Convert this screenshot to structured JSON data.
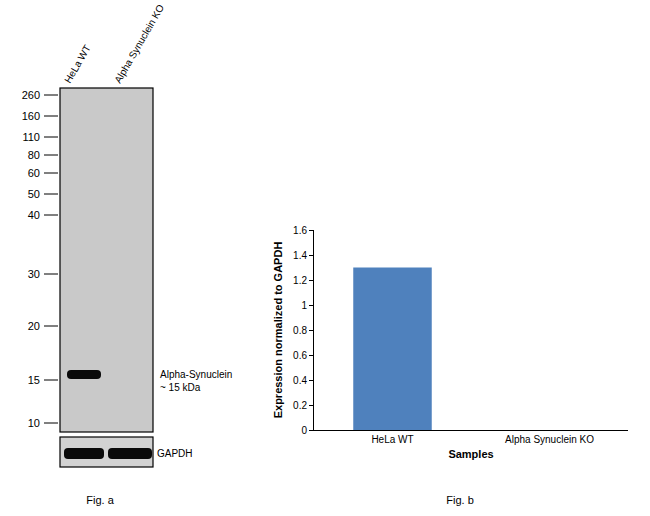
{
  "blot": {
    "lanes": [
      "HeLa WT",
      "Alpha Synuclein KO"
    ],
    "markers": [
      260,
      160,
      110,
      80,
      60,
      50,
      40,
      30,
      20,
      15,
      10
    ],
    "bands": [
      {
        "label": "Alpha-Synuclein",
        "size": "~ 15 kDa",
        "present": [
          true,
          false
        ]
      },
      {
        "label": "GAPDH",
        "present": [
          true,
          true
        ]
      }
    ],
    "caption": "Fig. a"
  },
  "chart_data": {
    "type": "bar",
    "categories": [
      "HeLa WT",
      "Alpha Synuclein KO"
    ],
    "values": [
      1.3,
      0
    ],
    "color": "#4f81bd",
    "x_label": "Samples",
    "y_label": "Expression normalized to GAPDH",
    "ylim": [
      0,
      1.6
    ],
    "yticks": [
      0,
      0.2,
      0.4,
      0.6,
      0.8,
      1,
      1.2,
      1.4,
      1.6
    ],
    "grid": false,
    "caption": "Fig. b"
  }
}
